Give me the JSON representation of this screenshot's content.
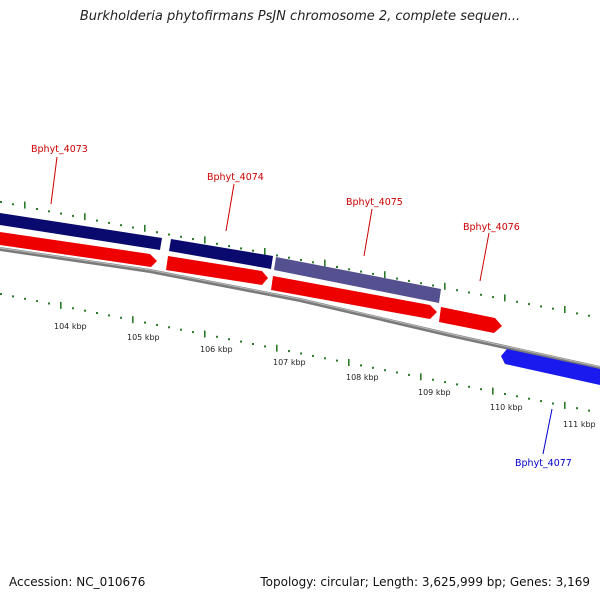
{
  "title": "Burkholderia phytofirmans PsJN chromosome 2, complete sequen...",
  "footer": {
    "accession": "Accession: NC_010676",
    "topology": "Topology: circular; Length: 3,625,999 bp; Genes: 3,169"
  },
  "colors": {
    "dark_navy": "#0a0a6e",
    "lavender": "#55508f",
    "red": "#ee0000",
    "blue": "#1a1aee",
    "backbone": "#888888",
    "tick_green": "#2a7a2a",
    "label_red": "#cc0000",
    "label_blue": "#0000cc"
  },
  "genes": [
    {
      "name": "Bphyt_4073",
      "color": "dark_navy",
      "label_color": "label_red"
    },
    {
      "name": "Bphyt_4074",
      "color": "dark_navy",
      "label_color": "label_red"
    },
    {
      "name": "Bphyt_4075",
      "color": "lavender",
      "label_color": "label_red"
    },
    {
      "name": "Bphyt_4076",
      "color": "red",
      "label_color": "label_red"
    },
    {
      "name": "Bphyt_4077",
      "color": "blue",
      "label_color": "label_blue"
    }
  ],
  "scale_labels": [
    "104 kbp",
    "105 kbp",
    "106 kbp",
    "107 kbp",
    "108 kbp",
    "109 kbp",
    "110 kbp",
    "111 kbp"
  ]
}
